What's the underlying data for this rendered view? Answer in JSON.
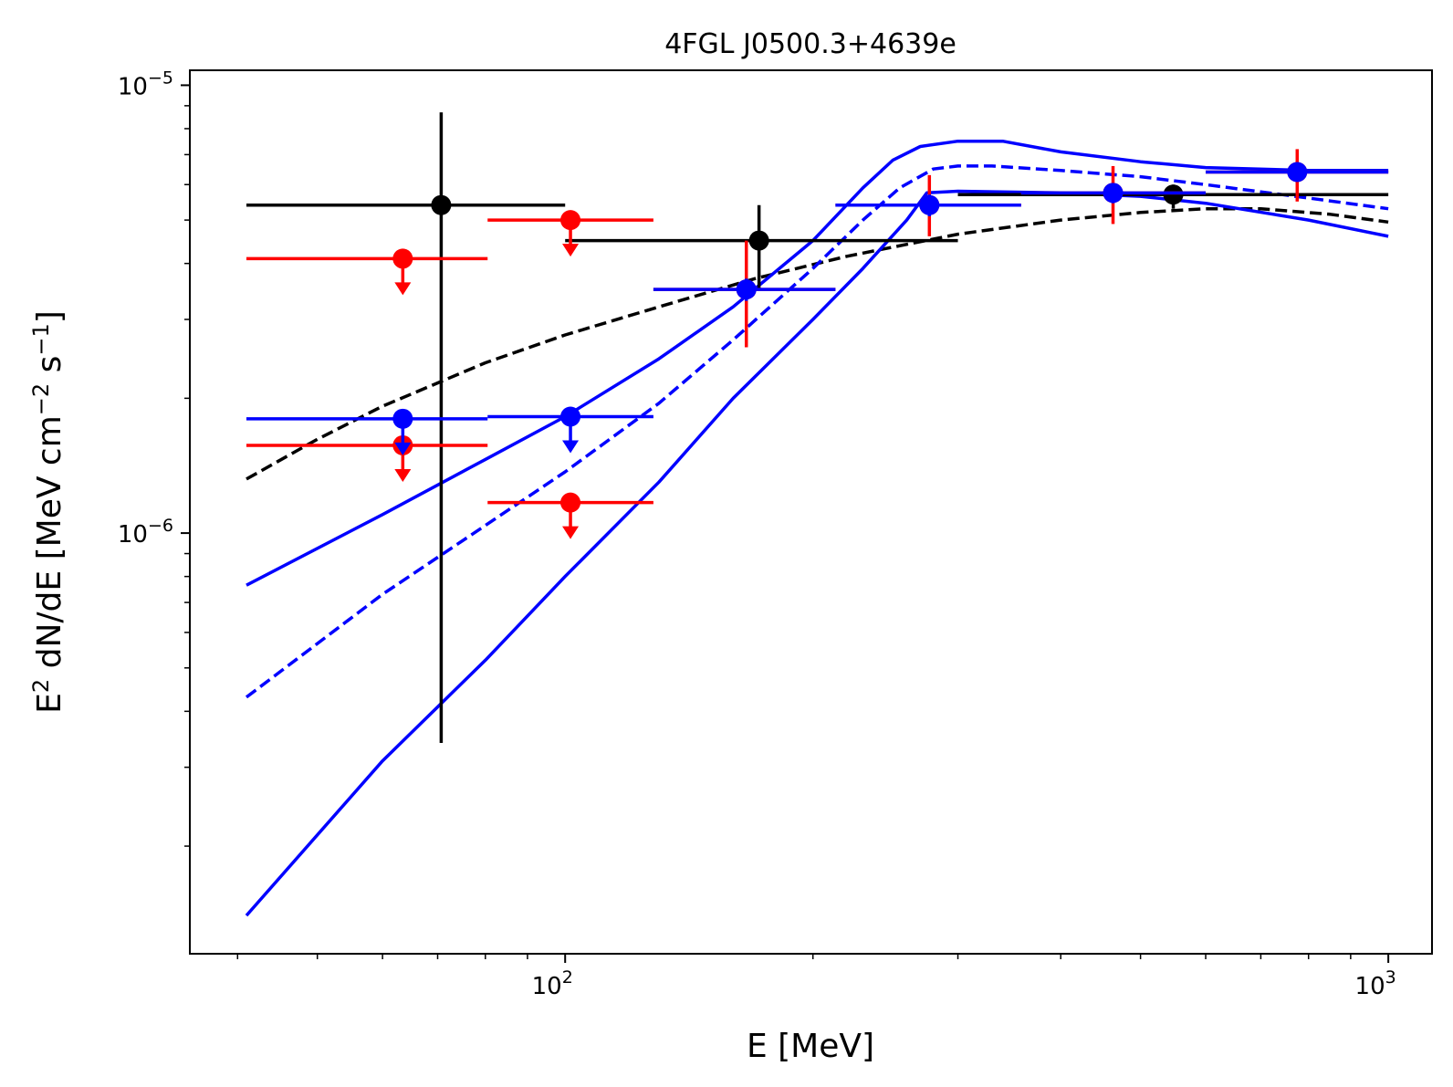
{
  "chart_data": {
    "type": "scatter",
    "title": "4FGL J0500.3+4639e",
    "xlabel": {
      "text": "E [MeV]"
    },
    "ylabel": {
      "base": "E",
      "sup1": "2",
      "mid": " dN/dE [MeV cm",
      "sup2": "−2",
      "mid2": " s",
      "sup3": "−1",
      "end": "]"
    },
    "xscale": "log",
    "yscale": "log",
    "xlim": [
      35,
      1130
    ],
    "ylim": [
      1.15e-07,
      1.08e-05
    ],
    "x_ticks": [
      {
        "value": 100,
        "base": "10",
        "exp": "2"
      },
      {
        "value": 1000,
        "base": "10",
        "exp": "3"
      }
    ],
    "y_ticks": [
      {
        "value": 1e-06,
        "base": "10",
        "exp": "−6"
      },
      {
        "value": 1e-05,
        "base": "10",
        "exp": "−5"
      }
    ],
    "colors": {
      "black": "#000000",
      "red": "#ff0000",
      "blue": "#0000ff"
    },
    "series": [
      {
        "name": "black-points",
        "color": "#000000",
        "points": [
          {
            "x": 70.7,
            "y": 5.4e-06,
            "xlo": 41,
            "xhi": 100,
            "ylo": 3.4e-07,
            "yhi": 8.7e-06
          },
          {
            "x": 172,
            "y": 4.5e-06,
            "xlo": 100,
            "xhi": 300,
            "ylo": 3.5e-06,
            "yhi": 5.4e-06
          },
          {
            "x": 548,
            "y": 5.7e-06,
            "xlo": 300,
            "xhi": 1000,
            "ylo": 5.3e-06,
            "yhi": 6e-06
          }
        ]
      },
      {
        "name": "red-points",
        "color": "#ff0000",
        "points": [
          {
            "x": 63.5,
            "y": 4.1e-06,
            "xlo": 41,
            "xhi": 80.5,
            "ul": true
          },
          {
            "x": 63.5,
            "y": 1.57e-06,
            "xlo": 41,
            "xhi": 80.5,
            "ul": true
          },
          {
            "x": 101.5,
            "y": 5e-06,
            "xlo": 80.5,
            "xhi": 128,
            "ul": true
          },
          {
            "x": 101.5,
            "y": 1.17e-06,
            "xlo": 80.5,
            "xhi": 128,
            "ul": true
          },
          {
            "x": 166,
            "y": 3.5e-06,
            "xlo": 128,
            "xhi": 213,
            "ylo": 2.6e-06,
            "yhi": 4.5e-06
          },
          {
            "x": 277,
            "y": 5.4e-06,
            "xlo": 213,
            "xhi": 358,
            "ylo": 4.6e-06,
            "yhi": 6.3e-06
          },
          {
            "x": 463,
            "y": 5.75e-06,
            "xlo": 358,
            "xhi": 600,
            "ylo": 4.9e-06,
            "yhi": 6.6e-06
          },
          {
            "x": 775,
            "y": 6.4e-06,
            "xlo": 600,
            "xhi": 1000,
            "ylo": 5.5e-06,
            "yhi": 7.2e-06
          }
        ]
      },
      {
        "name": "blue-points",
        "color": "#0000ff",
        "points": [
          {
            "x": 63.5,
            "y": 1.8e-06,
            "xlo": 41,
            "xhi": 80.5,
            "ul": true
          },
          {
            "x": 101.5,
            "y": 1.82e-06,
            "xlo": 80.5,
            "xhi": 128,
            "ul": true
          },
          {
            "x": 166,
            "y": 3.5e-06,
            "xlo": 128,
            "xhi": 213,
            "ylo": 3.3e-06,
            "yhi": 3.7e-06
          },
          {
            "x": 277,
            "y": 5.4e-06,
            "xlo": 213,
            "xhi": 358,
            "ylo": 5.1e-06,
            "yhi": 5.7e-06
          },
          {
            "x": 463,
            "y": 5.75e-06,
            "xlo": 358,
            "xhi": 600,
            "ylo": 5.45e-06,
            "yhi": 6.05e-06
          },
          {
            "x": 775,
            "y": 6.4e-06,
            "xlo": 600,
            "xhi": 1000,
            "ylo": 6.1e-06,
            "yhi": 6.7e-06
          }
        ]
      }
    ],
    "curves": [
      {
        "name": "black-dashed-model",
        "color": "#000000",
        "style": "dashed",
        "points": [
          [
            41,
            1.32e-06
          ],
          [
            50,
            1.62e-06
          ],
          [
            60,
            1.92e-06
          ],
          [
            80,
            2.4e-06
          ],
          [
            100,
            2.77e-06
          ],
          [
            130,
            3.2e-06
          ],
          [
            170,
            3.7e-06
          ],
          [
            220,
            4.15e-06
          ],
          [
            300,
            4.65e-06
          ],
          [
            400,
            5e-06
          ],
          [
            500,
            5.2e-06
          ],
          [
            600,
            5.3e-06
          ],
          [
            700,
            5.3e-06
          ],
          [
            850,
            5.15e-06
          ],
          [
            1000,
            4.95e-06
          ]
        ]
      },
      {
        "name": "blue-dashed-model",
        "color": "#0000ff",
        "style": "dashed",
        "points": [
          [
            41,
            4.3e-07
          ],
          [
            60,
            7.3e-07
          ],
          [
            80,
            1.04e-06
          ],
          [
            100,
            1.37e-06
          ],
          [
            130,
            1.95e-06
          ],
          [
            160,
            2.7e-06
          ],
          [
            200,
            3.9e-06
          ],
          [
            230,
            5e-06
          ],
          [
            255,
            5.9e-06
          ],
          [
            280,
            6.5e-06
          ],
          [
            300,
            6.6e-06
          ],
          [
            330,
            6.6e-06
          ],
          [
            400,
            6.45e-06
          ],
          [
            500,
            6.25e-06
          ],
          [
            600,
            6e-06
          ],
          [
            800,
            5.6e-06
          ],
          [
            1000,
            5.3e-06
          ]
        ]
      },
      {
        "name": "blue-upper-band",
        "color": "#0000ff",
        "style": "solid",
        "points": [
          [
            41,
            7.65e-07
          ],
          [
            60,
            1.1e-06
          ],
          [
            80,
            1.46e-06
          ],
          [
            100,
            1.82e-06
          ],
          [
            130,
            2.45e-06
          ],
          [
            160,
            3.2e-06
          ],
          [
            200,
            4.5e-06
          ],
          [
            230,
            5.9e-06
          ],
          [
            250,
            6.8e-06
          ],
          [
            270,
            7.3e-06
          ],
          [
            300,
            7.5e-06
          ],
          [
            340,
            7.5e-06
          ],
          [
            400,
            7.1e-06
          ],
          [
            500,
            6.75e-06
          ],
          [
            600,
            6.55e-06
          ],
          [
            800,
            6.45e-06
          ],
          [
            1000,
            6.45e-06
          ]
        ]
      },
      {
        "name": "blue-lower-band",
        "color": "#0000ff",
        "style": "solid",
        "points": [
          [
            41,
            1.4e-07
          ],
          [
            60,
            3.1e-07
          ],
          [
            80,
            5.2e-07
          ],
          [
            100,
            8e-07
          ],
          [
            130,
            1.3e-06
          ],
          [
            160,
            2e-06
          ],
          [
            200,
            3e-06
          ],
          [
            230,
            3.9e-06
          ],
          [
            260,
            5e-06
          ],
          [
            275,
            5.75e-06
          ],
          [
            300,
            5.8e-06
          ],
          [
            400,
            5.75e-06
          ],
          [
            500,
            5.65e-06
          ],
          [
            600,
            5.45e-06
          ],
          [
            800,
            5e-06
          ],
          [
            1000,
            4.6e-06
          ]
        ]
      }
    ]
  }
}
